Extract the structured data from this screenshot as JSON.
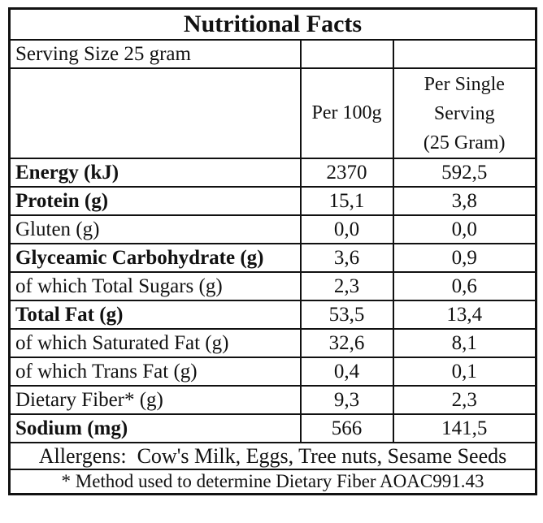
{
  "label": {
    "title": "Nutritional Facts",
    "serving_size": "Serving Size 25 gram",
    "columns": {
      "per_100g": "Per 100g",
      "per_serving_lines": [
        "Per Single",
        "Serving",
        "(25 Gram)"
      ]
    },
    "rows": [
      {
        "label": "Energy (kJ)",
        "per_100g": "2370",
        "per_serving": "592,5",
        "emphasis": true
      },
      {
        "label": "Protein (g)",
        "per_100g": "15,1",
        "per_serving": "3,8",
        "emphasis": true
      },
      {
        "label": "Gluten (g)",
        "per_100g": "0,0",
        "per_serving": "0,0",
        "emphasis": false
      },
      {
        "label": "Glyceamic Carbohydrate (g)",
        "per_100g": "3,6",
        "per_serving": "0,9",
        "emphasis": true
      },
      {
        "label": "of which Total Sugars (g)",
        "per_100g": "2,3",
        "per_serving": "0,6",
        "emphasis": false
      },
      {
        "label": "Total Fat (g)",
        "per_100g": "53,5",
        "per_serving": "13,4",
        "emphasis": true
      },
      {
        "label": "of which Saturated Fat (g)",
        "per_100g": "32,6",
        "per_serving": "8,1",
        "emphasis": false
      },
      {
        "label": "of which Trans Fat (g)",
        "per_100g": "0,4",
        "per_serving": "0,1",
        "emphasis": false
      },
      {
        "label": "Dietary Fiber* (g)",
        "per_100g": "9,3",
        "per_serving": "2,3",
        "emphasis": false
      },
      {
        "label": "Sodium (mg)",
        "per_100g": "566",
        "per_serving": "141,5",
        "emphasis": true
      }
    ],
    "allergens": "Allergens:  Cow's Milk, Eggs, Tree nuts, Sesame Seeds",
    "footnote": "* Method used to determine Dietary Fiber AOAC991.43",
    "colors": {
      "border": "#111111",
      "text": "#111111",
      "background": "#ffffff"
    }
  }
}
